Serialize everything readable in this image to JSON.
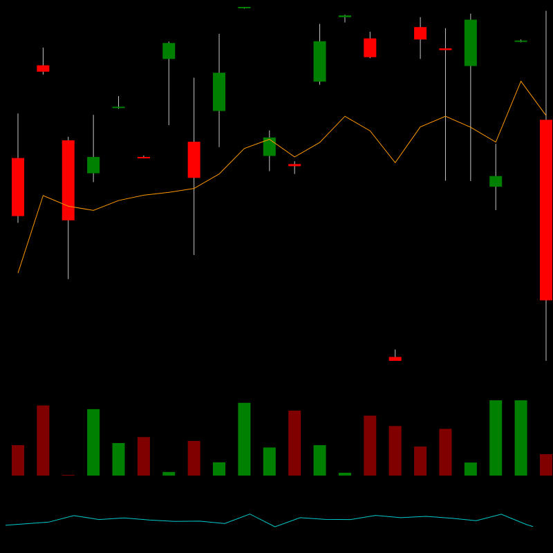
{
  "colors": {
    "background": "#000000",
    "up": "#008000",
    "down": "#ff0000",
    "wick": "#c8c8c8",
    "volume_up": "#008000",
    "volume_down": "#800000",
    "moving_average": "#ff9900",
    "indicator": "#00cccc"
  },
  "chart_data": [
    {
      "type": "candlestick",
      "title": "",
      "xlabel": "",
      "ylabel": "",
      "ylim": [
        0,
        100
      ],
      "grid": false,
      "candles": [
        {
          "open": 57.3,
          "high": 69.9,
          "low": 39.0,
          "close": 40.9,
          "direction": "down"
        },
        {
          "open": 83.5,
          "high": 88.5,
          "low": 80.9,
          "close": 81.7,
          "direction": "down"
        },
        {
          "open": 62.3,
          "high": 63.3,
          "low": 23.1,
          "close": 39.7,
          "direction": "down"
        },
        {
          "open": 53.0,
          "high": 69.5,
          "low": 50.5,
          "close": 57.6,
          "direction": "up"
        },
        {
          "open": 71.6,
          "high": 74.8,
          "low": 71.2,
          "close": 71.8,
          "direction": "up"
        },
        {
          "open": 57.6,
          "high": 58.0,
          "low": 57.2,
          "close": 57.4,
          "direction": "down"
        },
        {
          "open": 85.3,
          "high": 90.2,
          "low": 66.6,
          "close": 89.8,
          "direction": "up"
        },
        {
          "open": 61.9,
          "high": 80.0,
          "low": 29.9,
          "close": 51.7,
          "direction": "down"
        },
        {
          "open": 70.6,
          "high": 92.4,
          "low": 60.4,
          "close": 81.4,
          "direction": "up"
        },
        {
          "open": 99.7,
          "high": 100.0,
          "low": 99.5,
          "close": 100.0,
          "direction": "up"
        },
        {
          "open": 57.9,
          "high": 65.1,
          "low": 53.6,
          "close": 63.1,
          "direction": "up"
        },
        {
          "open": 55.6,
          "high": 56.4,
          "low": 52.8,
          "close": 55.0,
          "direction": "down"
        },
        {
          "open": 78.9,
          "high": 95.2,
          "low": 78.0,
          "close": 90.3,
          "direction": "up"
        },
        {
          "open": 97.1,
          "high": 97.8,
          "low": 95.6,
          "close": 97.6,
          "direction": "up"
        },
        {
          "open": 91.1,
          "high": 93.0,
          "low": 85.5,
          "close": 85.8,
          "direction": "down"
        },
        {
          "open": 1.1,
          "high": 3.2,
          "low": 0.2,
          "close": 0.0,
          "direction": "down"
        },
        {
          "open": 94.3,
          "high": 97.1,
          "low": 85.3,
          "close": 90.8,
          "direction": "down"
        },
        {
          "open": 88.3,
          "high": 94.0,
          "low": 50.9,
          "close": 87.8,
          "direction": "down"
        },
        {
          "open": 83.3,
          "high": 98.1,
          "low": 50.8,
          "close": 96.4,
          "direction": "up"
        },
        {
          "open": 49.2,
          "high": 61.3,
          "low": 42.6,
          "close": 52.2,
          "direction": "up"
        },
        {
          "open": 90.3,
          "high": 90.8,
          "low": 90.0,
          "close": 90.5,
          "direction": "up"
        },
        {
          "open": 68.1,
          "high": 98.9,
          "low": 0.0,
          "close": 17.1,
          "direction": "down"
        }
      ],
      "moving_average": [
        24.8,
        46.7,
        43.7,
        42.5,
        45.3,
        46.8,
        47.6,
        48.7,
        52.8,
        60.0,
        62.6,
        57.6,
        61.7,
        69.1,
        65.0,
        56.0,
        66.1,
        69.1,
        66.0,
        61.8,
        79.0,
        69.3
      ]
    },
    {
      "type": "bar",
      "title": "",
      "ylabel": "",
      "ylim": [
        0,
        100
      ],
      "values": [
        39.6,
        91.4,
        0.9,
        86.6,
        42.4,
        50.2,
        4.7,
        45.1,
        17.3,
        94.8,
        36.6,
        84.6,
        39.6,
        3.7,
        78.1,
        64.6,
        37.8,
        60.9,
        17.0,
        98.1,
        98.1,
        27.9
      ],
      "directions": [
        "down",
        "down",
        "down",
        "up",
        "up",
        "down",
        "up",
        "down",
        "up",
        "up",
        "up",
        "down",
        "up",
        "up",
        "down",
        "down",
        "down",
        "down",
        "up",
        "up",
        "up",
        "down"
      ]
    },
    {
      "type": "line",
      "title": "",
      "ylabel": "",
      "ylim": [
        0,
        100
      ],
      "values": [
        15.1,
        28.5,
        56.3,
        39.5,
        46.4,
        37.4,
        31.7,
        32.6,
        22.6,
        62.9,
        8.5,
        47.5,
        40.1,
        39.3,
        56.9,
        47.6,
        53.1,
        45.1,
        34.6,
        62.0,
        18.0,
        9.6
      ]
    }
  ]
}
